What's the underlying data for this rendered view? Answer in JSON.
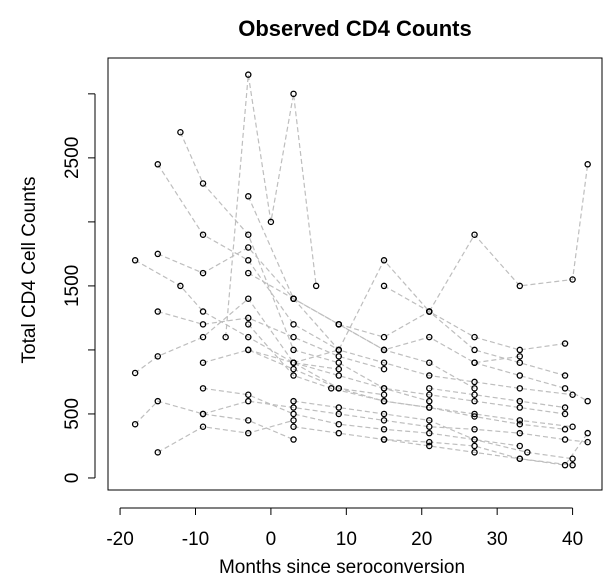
{
  "chart_data": {
    "type": "scatter",
    "title": "Observed CD4 Counts",
    "x_label": "Months since seroconversion",
    "y_label": "Total CD4 Cell Counts",
    "xlim": [
      -21.6,
      43.9
    ],
    "ylim": [
      -94,
      3280
    ],
    "xticks": [
      -20,
      -10,
      0,
      10,
      20,
      30,
      40
    ],
    "yticks": [
      0,
      500,
      {
        "value": 1000,
        "label": null
      },
      1500,
      {
        "value": 2000,
        "label": null
      },
      2500,
      {
        "value": 3000,
        "label": null
      }
    ],
    "point_color": "#000000",
    "line_color": "#bebebe",
    "series": [
      {
        "x": [
          -18,
          -15,
          -9,
          -3,
          3,
          9,
          15
        ],
        "values": [
          820,
          950,
          1100,
          1400,
          900,
          700,
          650
        ]
      },
      {
        "x": [
          -15,
          -9,
          -3,
          3,
          9
        ],
        "values": [
          2450,
          1900,
          1700,
          1200,
          1000
        ]
      },
      {
        "x": [
          -3,
          3,
          8,
          15,
          21,
          27,
          33,
          40
        ],
        "values": [
          1200,
          800,
          700,
          600,
          550,
          500,
          450,
          400
        ]
      },
      {
        "x": [
          -6,
          -3,
          0,
          3,
          6
        ],
        "values": [
          1100,
          3150,
          2000,
          3000,
          1500
        ]
      },
      {
        "x": [
          3,
          9,
          15,
          21,
          27,
          33,
          40,
          42
        ],
        "values": [
          900,
          1000,
          1700,
          1300,
          1900,
          1500,
          1550,
          2450
        ]
      },
      {
        "x": [
          -12,
          -9,
          -3,
          3,
          9,
          15,
          21
        ],
        "values": [
          2700,
          2300,
          1900,
          1000,
          900,
          700,
          600
        ]
      },
      {
        "x": [
          -18,
          -15,
          -9,
          -3,
          3
        ],
        "values": [
          420,
          600,
          500,
          450,
          300
        ]
      },
      {
        "x": [
          -9,
          -3,
          3,
          9,
          15,
          21,
          27,
          33
        ],
        "values": [
          700,
          650,
          500,
          420,
          380,
          350,
          300,
          250
        ]
      },
      {
        "x": [
          -3,
          3,
          9,
          15,
          21,
          27,
          33,
          39
        ],
        "values": [
          1000,
          900,
          800,
          700,
          650,
          600,
          550,
          500
        ]
      },
      {
        "x": [
          3,
          9,
          15,
          21,
          27,
          34,
          40
        ],
        "values": [
          600,
          550,
          500,
          450,
          300,
          200,
          150
        ]
      },
      {
        "x": [
          -15,
          -9,
          -3,
          3,
          9,
          15
        ],
        "values": [
          1300,
          1200,
          1250,
          1100,
          950,
          850
        ]
      },
      {
        "x": [
          9,
          15,
          21,
          27,
          33,
          39
        ],
        "values": [
          1200,
          1100,
          1300,
          1000,
          900,
          800
        ]
      },
      {
        "x": [
          -15,
          -9,
          -3,
          3
        ],
        "values": [
          200,
          400,
          350,
          450
        ]
      },
      {
        "x": [
          15,
          21,
          27,
          33,
          39,
          42
        ],
        "values": [
          300,
          250,
          200,
          150,
          100,
          350
        ]
      },
      {
        "x": [
          -3,
          3,
          9,
          15,
          21,
          27,
          33
        ],
        "values": [
          1600,
          1400,
          1200,
          1000,
          1100,
          900,
          950
        ]
      },
      {
        "x": [
          -9,
          -3,
          3,
          9,
          15,
          21,
          27,
          33,
          39
        ],
        "values": [
          900,
          1000,
          850,
          700,
          600,
          550,
          480,
          420,
          380
        ]
      },
      {
        "x": [
          21,
          27,
          33,
          39
        ],
        "values": [
          700,
          650,
          600,
          550
        ]
      },
      {
        "x": [
          -18,
          -12,
          -9,
          -3,
          3,
          9
        ],
        "values": [
          1700,
          1500,
          1300,
          1100,
          900,
          850
        ]
      },
      {
        "x": [
          3,
          9,
          15,
          21,
          27,
          33,
          40
        ],
        "values": [
          400,
          350,
          300,
          280,
          250,
          150,
          100
        ]
      },
      {
        "x": [
          -15,
          -9,
          -3,
          3,
          9,
          15,
          21,
          27
        ],
        "values": [
          1750,
          1600,
          1800,
          1400,
          1200,
          1000,
          900,
          700
        ]
      },
      {
        "x": [
          15,
          21,
          27,
          33,
          39
        ],
        "values": [
          1500,
          1300,
          1100,
          1000,
          1050
        ]
      },
      {
        "x": [
          -9,
          -3,
          3,
          9,
          15,
          21,
          27,
          33,
          39,
          42
        ],
        "values": [
          500,
          600,
          550,
          500,
          450,
          400,
          380,
          350,
          300,
          280
        ]
      },
      {
        "x": [
          -3,
          3,
          9,
          15,
          21,
          27,
          33,
          40
        ],
        "values": [
          2200,
          1400,
          1000,
          900,
          800,
          750,
          700,
          650
        ]
      },
      {
        "x": [
          27,
          33,
          39,
          42
        ],
        "values": [
          900,
          800,
          700,
          600
        ]
      }
    ]
  }
}
